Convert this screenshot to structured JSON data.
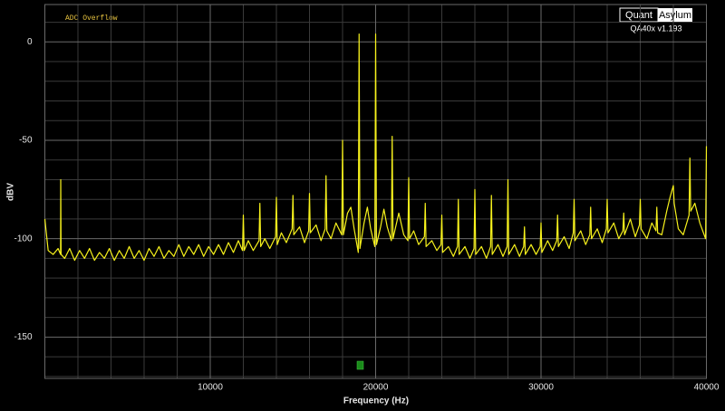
{
  "chart_data": {
    "type": "line",
    "x_label": "Frequency (Hz)",
    "y_label": "dBV",
    "annotation": "ADC Overflow",
    "logo": [
      "Quant",
      "Asylum"
    ],
    "version": "QA40x v1.193",
    "xlim": [
      0,
      40000
    ],
    "ylim": [
      -171,
      19
    ],
    "xticks": [
      10000,
      20000,
      30000,
      40000
    ],
    "yticks": [
      0,
      -50,
      -100,
      -150
    ],
    "grid": true,
    "minor_divisions": 5,
    "x": [
      0,
      200,
      500,
      800,
      950,
      960,
      980,
      1200,
      1500,
      1800,
      2100,
      2400,
      2700,
      3000,
      3300,
      3600,
      3900,
      4200,
      4500,
      4800,
      5100,
      5400,
      5700,
      6000,
      6300,
      6600,
      6900,
      7200,
      7500,
      7800,
      8100,
      8400,
      8700,
      9000,
      9300,
      9600,
      9900,
      10200,
      10500,
      10800,
      11100,
      11400,
      11700,
      11950,
      12000,
      12050,
      12300,
      12600,
      12950,
      13000,
      13050,
      13300,
      13600,
      13950,
      14000,
      14050,
      14300,
      14600,
      14950,
      15000,
      15050,
      15400,
      15700,
      15950,
      16000,
      16050,
      16400,
      16700,
      16950,
      17000,
      17050,
      17300,
      17600,
      17950,
      18000,
      18050,
      18300,
      18500,
      18700,
      18950,
      19000,
      19050,
      19300,
      19500,
      19700,
      19950,
      20000,
      20050,
      20300,
      20500,
      20700,
      20950,
      21000,
      21050,
      21400,
      21700,
      21950,
      22000,
      22050,
      22300,
      22600,
      22950,
      23000,
      23050,
      23400,
      23700,
      23950,
      24000,
      24050,
      24400,
      24700,
      24950,
      25000,
      25050,
      25400,
      25700,
      25950,
      26000,
      26050,
      26400,
      26700,
      26950,
      27000,
      27050,
      27400,
      27700,
      27950,
      28000,
      28050,
      28400,
      28700,
      28950,
      29000,
      29050,
      29400,
      29700,
      29950,
      30000,
      30050,
      30400,
      30700,
      30950,
      31000,
      31050,
      31400,
      31700,
      31950,
      32000,
      32050,
      32400,
      32700,
      32950,
      33000,
      33050,
      33400,
      33700,
      33950,
      34000,
      34050,
      34400,
      34700,
      34950,
      35000,
      35050,
      35400,
      35700,
      35950,
      36000,
      36050,
      36400,
      36700,
      36950,
      37000,
      37050,
      37300,
      37600,
      37800,
      38000,
      38050,
      38300,
      38600,
      38950,
      39000,
      39050,
      39300,
      39600,
      39950,
      40000
    ],
    "series": [
      {
        "color": "#f7f21c",
        "values": [
          -90,
          -106,
          -108,
          -105,
          -108,
          -70,
          -108,
          -110,
          -105,
          -111,
          -106,
          -110,
          -105,
          -111,
          -107,
          -110,
          -105,
          -111,
          -106,
          -110,
          -104,
          -110,
          -106,
          -111,
          -105,
          -109,
          -104,
          -110,
          -106,
          -109,
          -103,
          -109,
          -104,
          -108,
          -103,
          -109,
          -104,
          -108,
          -103,
          -108,
          -102,
          -107,
          -101,
          -106,
          -88,
          -106,
          -101,
          -106,
          -101,
          -82,
          -104,
          -100,
          -105,
          -99,
          -79,
          -103,
          -97,
          -102,
          -95,
          -78,
          -98,
          -94,
          -102,
          -96,
          -77,
          -97,
          -93,
          -101,
          -95,
          -68,
          -96,
          -100,
          -92,
          -98,
          -50,
          -98,
          -87,
          -84,
          -95,
          -107,
          4,
          -105,
          -92,
          -84,
          -95,
          -104,
          4,
          -103,
          -94,
          -85,
          -94,
          -101,
          -48,
          -100,
          -87,
          -98,
          -101,
          -69,
          -100,
          -96,
          -103,
          -99,
          -82,
          -104,
          -101,
          -106,
          -103,
          -88,
          -107,
          -104,
          -109,
          -104,
          -80,
          -108,
          -104,
          -110,
          -105,
          -75,
          -108,
          -104,
          -110,
          -104,
          -78,
          -108,
          -103,
          -109,
          -104,
          -70,
          -108,
          -103,
          -109,
          -104,
          -94,
          -108,
          -103,
          -108,
          -104,
          -92,
          -107,
          -101,
          -106,
          -101,
          -88,
          -104,
          -99,
          -105,
          -97,
          -80,
          -101,
          -96,
          -103,
          -98,
          -84,
          -100,
          -95,
          -102,
          -95,
          -80,
          -97,
          -92,
          -100,
          -96,
          -87,
          -98,
          -90,
          -99,
          -93,
          -80,
          -95,
          -100,
          -92,
          -96,
          -84,
          -97,
          -98,
          -86,
          -79,
          -73,
          -82,
          -95,
          -98,
          -88,
          -59,
          -86,
          -82,
          -92,
          -100,
          -53
        ]
      }
    ]
  }
}
